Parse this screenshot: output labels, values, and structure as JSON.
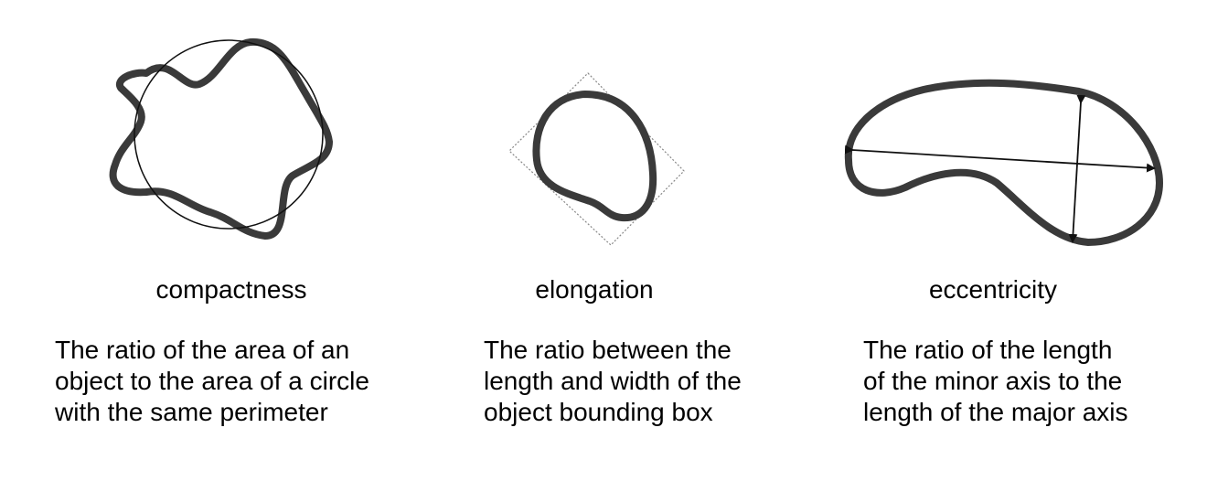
{
  "panels": [
    {
      "label": "compactness",
      "description": [
        "The ratio of the area of an",
        "object to the area of a circle",
        "with the same perimeter"
      ]
    },
    {
      "label": "elongation",
      "description": [
        "The ratio between the",
        "length and width of the",
        "object bounding box"
      ]
    },
    {
      "label": "eccentricity",
      "description": [
        "The ratio of the length",
        "of the minor axis to the",
        "length of the major axis"
      ]
    }
  ]
}
